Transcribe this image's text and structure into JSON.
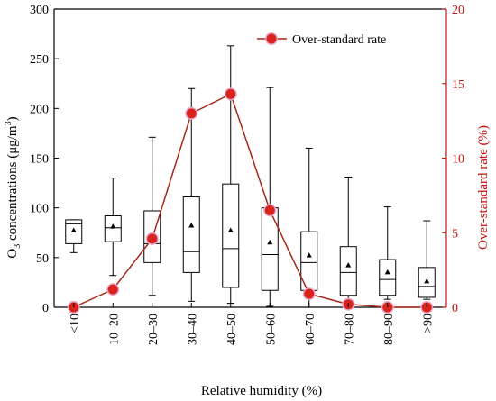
{
  "chart_data": {
    "type": "box+line",
    "xlabel": "Relative humidity (%)",
    "ylabel_left": "O3 concentrations (μg/m3)",
    "ylabel_right": "Over-standard rate (%)",
    "ylim_left": [
      0,
      300
    ],
    "ylim_right": [
      0,
      20
    ],
    "yticks_left": [
      "0",
      "50",
      "100",
      "150",
      "200",
      "250",
      "300"
    ],
    "yticks_right": [
      "0",
      "5",
      "10",
      "15",
      "20"
    ],
    "categories": [
      "<10",
      "10–20",
      "20–30",
      "30–40",
      "40–50",
      "50–60",
      "60–70",
      "70–80",
      "80–90",
      ">90"
    ],
    "boxes": [
      {
        "whisker_low": 55,
        "q1": 64,
        "median": 84,
        "q3": 88,
        "whisker_high": 88,
        "mean": 77
      },
      {
        "whisker_low": 32,
        "q1": 66,
        "median": 80,
        "q3": 92,
        "whisker_high": 130,
        "mean": 81
      },
      {
        "whisker_low": 12,
        "q1": 45,
        "median": 64,
        "q3": 97,
        "whisker_high": 171,
        "mean": 72
      },
      {
        "whisker_low": 6,
        "q1": 35,
        "median": 56,
        "q3": 111,
        "whisker_high": 220,
        "mean": 82
      },
      {
        "whisker_low": 4,
        "q1": 20,
        "median": 59,
        "q3": 124,
        "whisker_high": 263,
        "mean": 77
      },
      {
        "whisker_low": 1,
        "q1": 17,
        "median": 53,
        "q3": 100,
        "whisker_high": 221,
        "mean": 65
      },
      {
        "whisker_low": 0,
        "q1": 17,
        "median": 45,
        "q3": 76,
        "whisker_high": 160,
        "mean": 52
      },
      {
        "whisker_low": 7,
        "q1": 12,
        "median": 35,
        "q3": 61,
        "whisker_high": 131,
        "mean": 42
      },
      {
        "whisker_low": 8,
        "q1": 12,
        "median": 28,
        "q3": 48,
        "whisker_high": 101,
        "mean": 35
      },
      {
        "whisker_low": 8,
        "q1": 10,
        "median": 21,
        "q3": 40,
        "whisker_high": 87,
        "mean": 26
      }
    ],
    "series": [
      {
        "name": "Over-standard rate",
        "axis": "right",
        "values": [
          0.0,
          1.2,
          4.6,
          13.0,
          14.3,
          6.5,
          0.9,
          0.2,
          0.0,
          0.0
        ]
      }
    ],
    "legend": "top-right",
    "grid": false,
    "colors": {
      "line": "#a52a1a",
      "marker": "#d8241c",
      "marker_halo": "#e9a8cc",
      "right_axis": "#c0140c"
    }
  }
}
